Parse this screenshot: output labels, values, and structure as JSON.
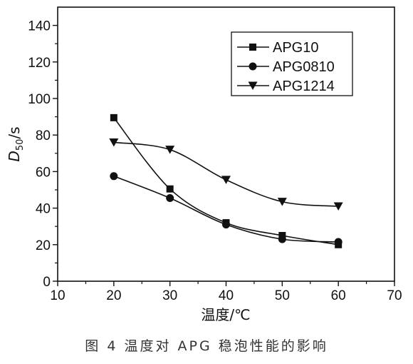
{
  "chart_data": {
    "type": "line",
    "title": "",
    "xlabel": "温度/℃",
    "ylabel_italic": "D",
    "ylabel_sub": "50",
    "ylabel_rest": "/s",
    "xlim": [
      10,
      70
    ],
    "ylim": [
      0,
      150
    ],
    "x_ticks": [
      10,
      20,
      30,
      40,
      50,
      60,
      70
    ],
    "y_ticks": [
      0,
      20,
      40,
      60,
      80,
      100,
      120,
      140
    ],
    "grid": false,
    "legend_position": "top-right",
    "x": [
      20,
      30,
      40,
      50,
      60
    ],
    "series": [
      {
        "name": "APG10",
        "marker": "square",
        "values": [
          89.5,
          50.5,
          32,
          25,
          20
        ]
      },
      {
        "name": "APG0810",
        "marker": "circle",
        "values": [
          57.5,
          45.5,
          31,
          23,
          21.5
        ]
      },
      {
        "name": "APG1214",
        "marker": "triangle-down",
        "values": [
          76,
          72,
          55.5,
          43.5,
          41
        ]
      }
    ]
  },
  "caption": "图 4   温度对 APG 稳泡性能的影响"
}
